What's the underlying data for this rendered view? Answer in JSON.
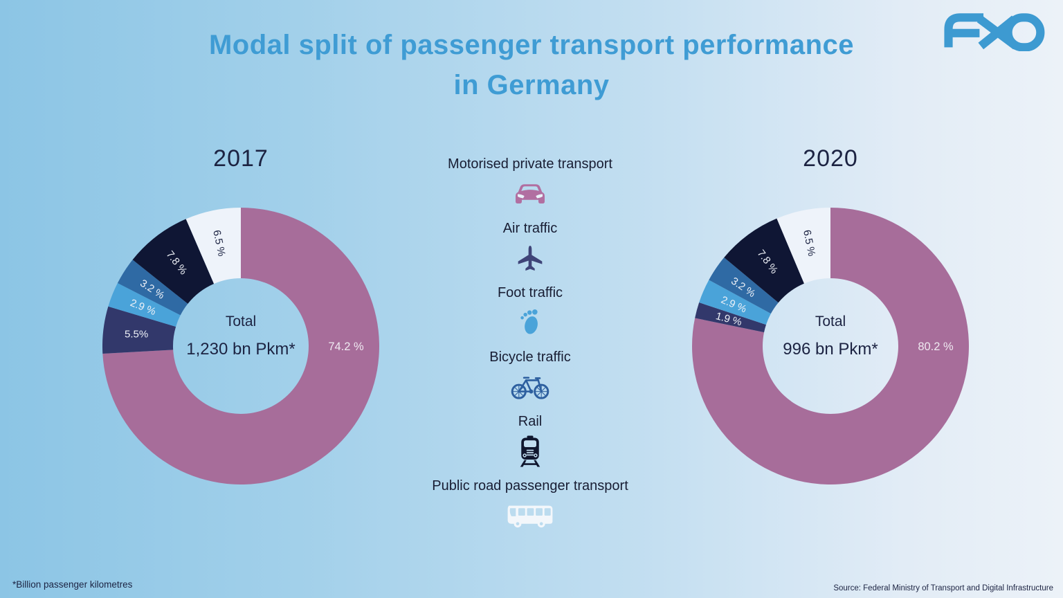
{
  "header": {
    "title_line1": "Modal split of passenger transport performance",
    "title_line2": "in Germany",
    "logo_text": "AXO"
  },
  "legend": {
    "items": [
      {
        "label": "Motorised private transport",
        "icon": "car-icon",
        "color": "#b16fa1"
      },
      {
        "label": "Air traffic",
        "icon": "plane-icon",
        "color": "#3f4478"
      },
      {
        "label": "Foot traffic",
        "icon": "foot-icon",
        "color": "#4aa3d9"
      },
      {
        "label": "Bicycle traffic",
        "icon": "bicycle-icon",
        "color": "#2d5f9f"
      },
      {
        "label": "Rail",
        "icon": "train-icon",
        "color": "#10172e"
      },
      {
        "label": "Public road passenger transport",
        "icon": "bus-icon",
        "color": "#f3f7fb"
      }
    ]
  },
  "chart_data": [
    {
      "type": "pie",
      "title": "2017",
      "donut": true,
      "start_angle": "12-oclock",
      "direction": "clockwise",
      "center": {
        "label": "Total",
        "value": "1,230 bn Pkm*"
      },
      "categories": [
        "Motorised private transport",
        "Air traffic",
        "Foot traffic",
        "Bicycle traffic",
        "Rail",
        "Public road passenger transport"
      ],
      "values": [
        74.2,
        5.5,
        2.9,
        3.2,
        7.8,
        6.5
      ],
      "slice_labels": [
        "74.2 %",
        "5.5%",
        "2.9 %",
        "3.2 %",
        "7.8 %",
        "6.5 %"
      ],
      "colors": [
        "#a76d9a",
        "#32386b",
        "#4aa3d9",
        "#2f6aa4",
        "#0f1634",
        "#eef3fa"
      ],
      "label_colors": [
        "#efe9f1",
        "#eef1f7",
        "#eef1f7",
        "#eef1f7",
        "#eef1f7",
        "#1c2342"
      ]
    },
    {
      "type": "pie",
      "title": "2020",
      "donut": true,
      "start_angle": "12-oclock",
      "direction": "clockwise",
      "center": {
        "label": "Total",
        "value": "996 bn Pkm*"
      },
      "categories": [
        "Motorised private transport",
        "Air traffic",
        "Foot traffic",
        "Bicycle traffic",
        "Rail",
        "Public road passenger transport"
      ],
      "values": [
        80.2,
        1.9,
        2.9,
        3.2,
        7.8,
        6.5
      ],
      "slice_labels": [
        "80.2  %",
        "1.9 %",
        "2.9 %",
        "3.2 %",
        "7.8 %",
        "6.5 %"
      ],
      "colors": [
        "#a76d9a",
        "#32386b",
        "#4aa3d9",
        "#2f6aa4",
        "#0f1634",
        "#eef3fa"
      ],
      "label_colors": [
        "#efe9f1",
        "#eef1f7",
        "#eef1f7",
        "#eef1f7",
        "#eef1f7",
        "#1c2342"
      ]
    }
  ],
  "footer": {
    "footnote": "*Billion passenger kilometres",
    "source": "Source: Federal Ministry of Transport and Digital Infrastructure"
  },
  "colors": {
    "title": "#3f9cd4",
    "logo": "#3d9ad1",
    "text_dark": "#1c2342",
    "background_left": "#8cc5e5",
    "background_right": "#ecf2f8"
  }
}
